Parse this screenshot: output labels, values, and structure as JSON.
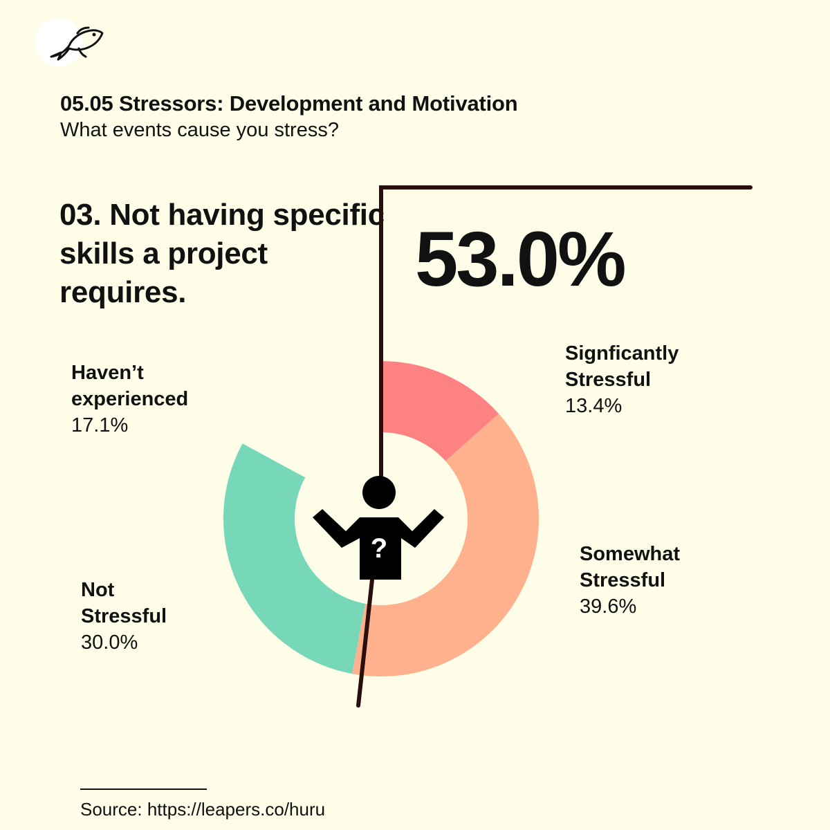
{
  "header": {
    "title": "05.05 Stressors: Development and Motivation",
    "subtitle": "What events cause you stress?"
  },
  "headline": "03. Not having specific skills a project requires.",
  "highlight_value": "53.0%",
  "source": "Source: https://leapers.co/huru",
  "icons": {
    "logo": "fish-icon",
    "center": "confused-person-icon"
  },
  "chart_data": {
    "type": "pie",
    "style": "donut",
    "slices": [
      {
        "name_line1": "Haven’t",
        "name_line2": "experienced",
        "value": 17.1,
        "label": "17.1%",
        "color": "#fefde8"
      },
      {
        "name_line1": "Signficantly",
        "name_line2": "Stressful",
        "value": 13.4,
        "label": "13.4%",
        "color": "#ff8282"
      },
      {
        "name_line1": "Somewhat",
        "name_line2": "Stressful",
        "value": 39.6,
        "label": "39.6%",
        "color": "#ffb08d"
      },
      {
        "name_line1": "Not",
        "name_line2": "Stressful",
        "value": 30.0,
        "label": "30.0%",
        "color": "#76d8b8"
      }
    ],
    "highlight_total": 53.0
  }
}
